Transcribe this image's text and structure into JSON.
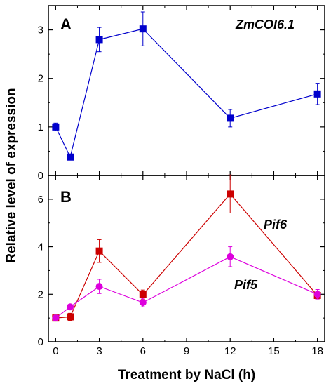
{
  "figure": {
    "ylabel": "Relative level of expression",
    "xlabel": "Treatment by NaCl (h)"
  },
  "chart_data": [
    {
      "type": "line",
      "panel": "A",
      "title": "",
      "xlim": [
        -0.5,
        18.5
      ],
      "ylim": [
        0,
        3.5
      ],
      "xticks": [
        0,
        3,
        6,
        9,
        12,
        15,
        18
      ],
      "yticks": [
        0,
        1,
        2,
        3
      ],
      "grid": false,
      "series": [
        {
          "name": "ZmCOI6.1",
          "color": "#0000cc",
          "marker": "square",
          "x": [
            0,
            1,
            3,
            6,
            12,
            18
          ],
          "y": [
            1.0,
            0.38,
            2.8,
            3.02,
            1.18,
            1.68
          ],
          "err": [
            0.08,
            0.03,
            0.25,
            0.35,
            0.18,
            0.22
          ]
        }
      ]
    },
    {
      "type": "line",
      "panel": "B",
      "title": "",
      "xlim": [
        -0.5,
        18.5
      ],
      "ylim": [
        0,
        7
      ],
      "xticks": [
        0,
        3,
        6,
        9,
        12,
        15,
        18
      ],
      "yticks": [
        0,
        2,
        4,
        6
      ],
      "grid": false,
      "series": [
        {
          "name": "Pif6",
          "color": "#cc0000",
          "marker": "square",
          "x": [
            0,
            1,
            3,
            6,
            12,
            18
          ],
          "y": [
            1.0,
            1.05,
            3.82,
            1.98,
            6.22,
            1.95
          ],
          "err": [
            0.05,
            0.15,
            0.48,
            0.2,
            0.8,
            0.15
          ]
        },
        {
          "name": "Pif5",
          "color": "#dd00dd",
          "marker": "circle",
          "x": [
            0,
            1,
            3,
            6,
            12,
            18
          ],
          "y": [
            1.0,
            1.47,
            2.33,
            1.65,
            3.58,
            2.0
          ],
          "err": [
            0.05,
            0.1,
            0.3,
            0.18,
            0.42,
            0.2
          ]
        }
      ]
    }
  ]
}
